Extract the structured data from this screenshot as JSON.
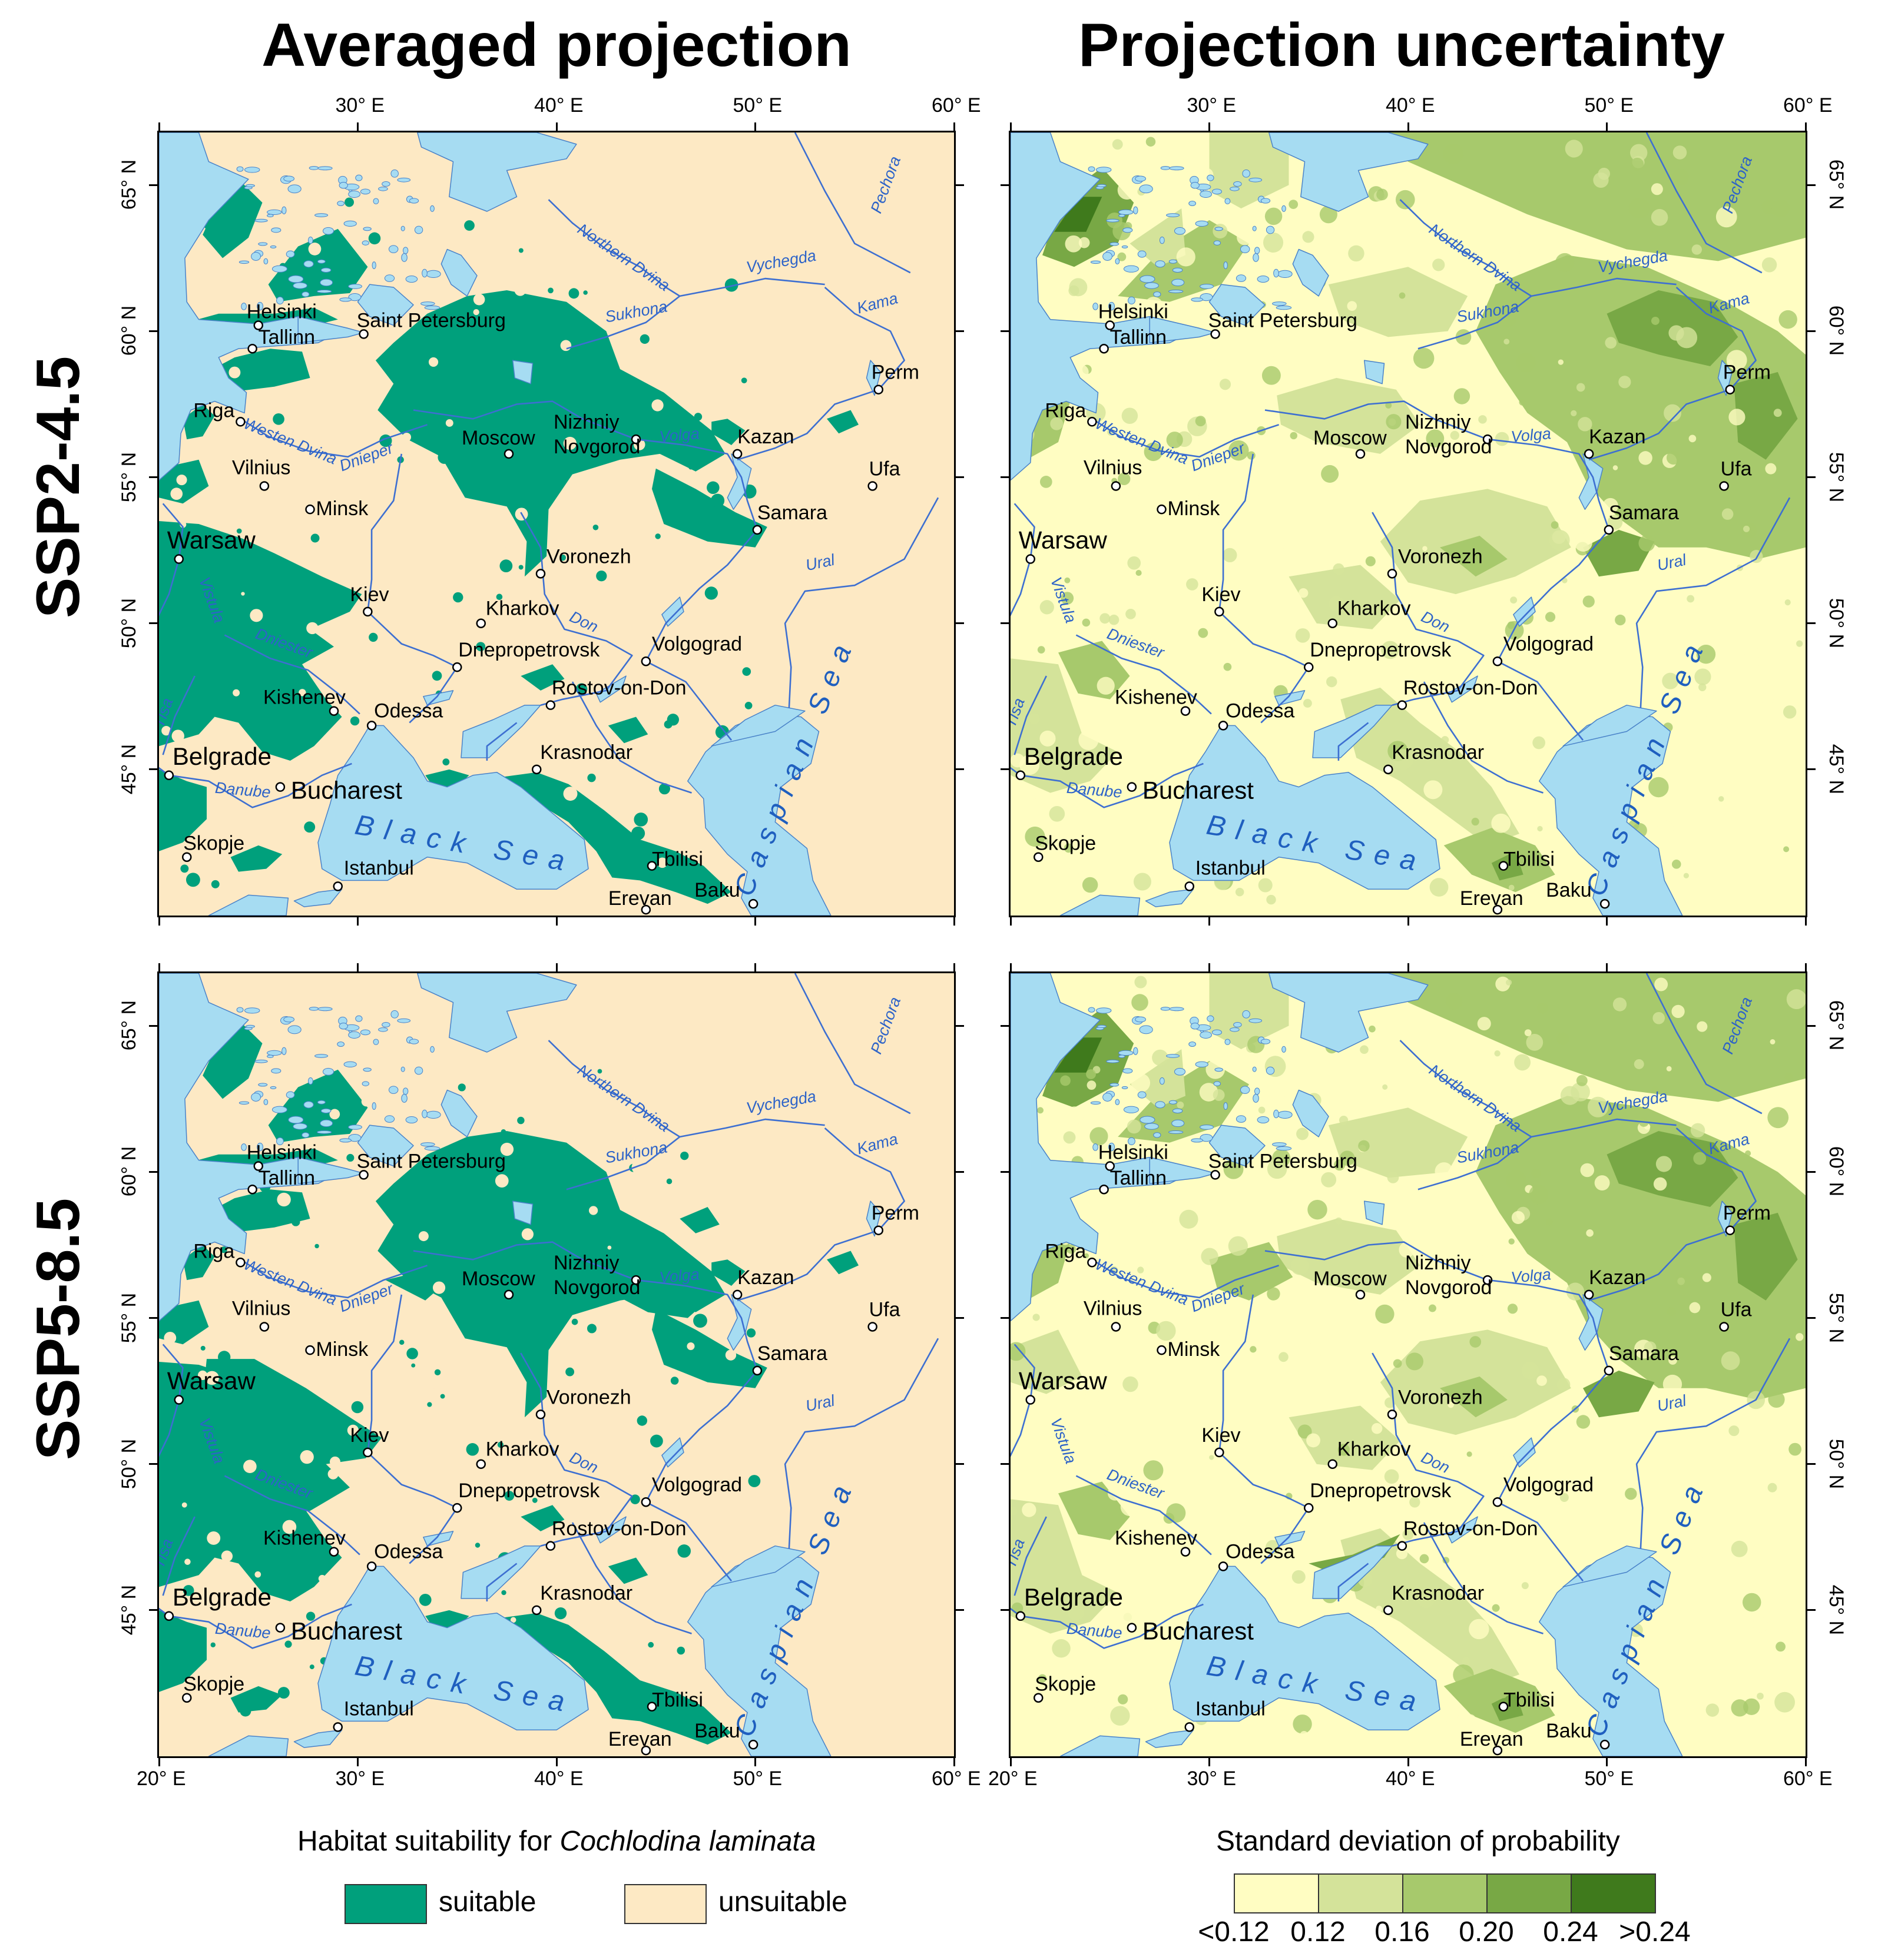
{
  "titles": {
    "left_column": "Averaged projection",
    "right_column": "Projection uncertainty",
    "top_row": "SSP2-4.5",
    "bottom_row": "SSP5-8.5"
  },
  "axes": {
    "longitude_ticks": [
      "20° E",
      "30° E",
      "40° E",
      "50° E",
      "60° E"
    ],
    "latitude_ticks": [
      "65° N",
      "60° N",
      "55° N",
      "50° N",
      "45° N"
    ],
    "top_ticks_left": [
      "30° E",
      "40° E",
      "50° E",
      "60° E"
    ],
    "top_ticks_right": [
      "30° E",
      "40° E",
      "50° E",
      "60° E"
    ]
  },
  "cities": [
    {
      "name": "Helsinki",
      "lon": 25.0,
      "lat": 60.2
    },
    {
      "name": "Tallinn",
      "lon": 24.7,
      "lat": 59.4
    },
    {
      "name": "Saint Petersburg",
      "lon": 30.3,
      "lat": 59.9
    },
    {
      "name": "Riga",
      "lon": 24.1,
      "lat": 56.9
    },
    {
      "name": "Moscow",
      "lon": 37.6,
      "lat": 55.8
    },
    {
      "name": "Nizhniy",
      "lon": 44.0,
      "lat": 56.3
    },
    {
      "name": "Novgorod",
      "lon": 44.0,
      "lat": 56.3
    },
    {
      "name": "Kazan",
      "lon": 49.1,
      "lat": 55.8
    },
    {
      "name": "Perm",
      "lon": 56.2,
      "lat": 58.0
    },
    {
      "name": "Ufa",
      "lon": 55.9,
      "lat": 54.7
    },
    {
      "name": "Vilnius",
      "lon": 25.3,
      "lat": 54.7
    },
    {
      "name": "Minsk",
      "lon": 27.6,
      "lat": 53.9
    },
    {
      "name": "Samara",
      "lon": 50.1,
      "lat": 53.2
    },
    {
      "name": "Warsaw",
      "lon": 21.0,
      "lat": 52.2
    },
    {
      "name": "Voronezh",
      "lon": 39.2,
      "lat": 51.7
    },
    {
      "name": "Kiev",
      "lon": 30.5,
      "lat": 50.4
    },
    {
      "name": "Kharkov",
      "lon": 36.2,
      "lat": 50.0
    },
    {
      "name": "Dnepropetrovsk",
      "lon": 35.0,
      "lat": 48.5
    },
    {
      "name": "Volgograd",
      "lon": 44.5,
      "lat": 48.7
    },
    {
      "name": "Rostov-on-Don",
      "lon": 39.7,
      "lat": 47.2
    },
    {
      "name": "Kishenev",
      "lon": 28.8,
      "lat": 47.0
    },
    {
      "name": "Odessa",
      "lon": 30.7,
      "lat": 46.5
    },
    {
      "name": "Krasnodar",
      "lon": 39.0,
      "lat": 45.0
    },
    {
      "name": "Belgrade",
      "lon": 20.5,
      "lat": 44.8
    },
    {
      "name": "Bucharest",
      "lon": 26.1,
      "lat": 44.4
    },
    {
      "name": "Skopje",
      "lon": 21.4,
      "lat": 42.0
    },
    {
      "name": "Istanbul",
      "lon": 29.0,
      "lat": 41.0
    },
    {
      "name": "Tbilisi",
      "lon": 44.8,
      "lat": 41.7
    },
    {
      "name": "Erevan",
      "lon": 44.5,
      "lat": 40.2
    },
    {
      "name": "Baku",
      "lon": 49.9,
      "lat": 40.4
    }
  ],
  "water_labels": {
    "black_sea": "Black Sea",
    "caspian_sea": "Caspian Sea"
  },
  "river_labels": [
    "Northern Dvina",
    "Vychegda",
    "Pechora",
    "Sukhona",
    "Kama",
    "Westen Dvina",
    "Volga",
    "Dnieper",
    "Vistula",
    "Don",
    "Ural",
    "Dniester",
    "Danube",
    "Tisa"
  ],
  "legend_left": {
    "title_prefix": "Habitat suitability for ",
    "title_species": "Cochlodina laminata",
    "items": [
      {
        "label": "suitable",
        "color": "#00a07c"
      },
      {
        "label": "unsuitable",
        "color": "#fde9c4"
      }
    ]
  },
  "legend_right": {
    "title": "Standard deviation of probability",
    "ramp_colors": [
      "#fffdc2",
      "#d4e39a",
      "#a7c96c",
      "#78a845",
      "#3f7a1c"
    ],
    "ramp_labels": [
      "<0.12",
      "0.12",
      "0.16",
      "0.20",
      "0.24",
      ">0.24"
    ]
  },
  "colors": {
    "suitable": "#00a07c",
    "unsuitable": "#fde9c4",
    "water": "#a6dcf2",
    "river": "#3d6fd1"
  }
}
